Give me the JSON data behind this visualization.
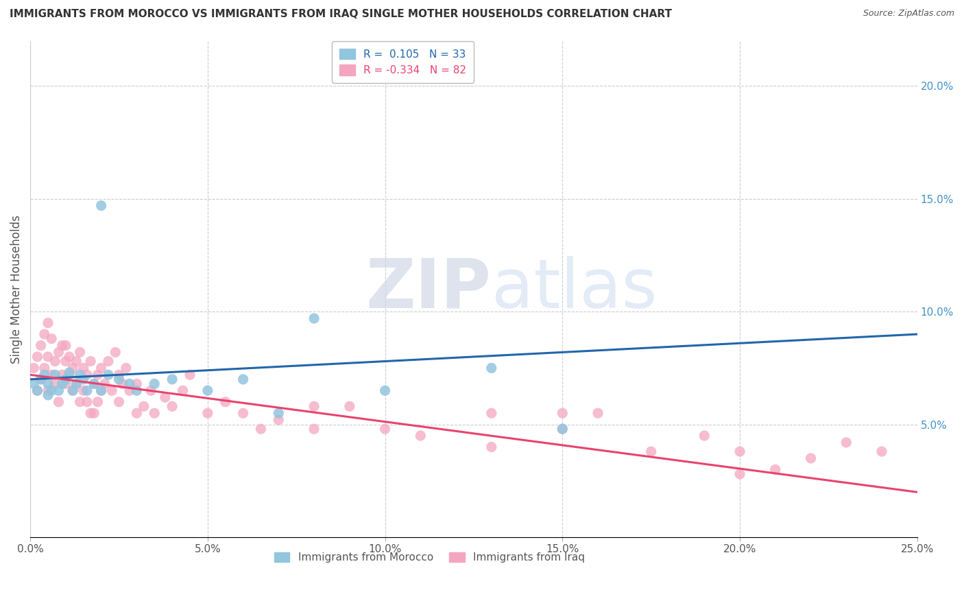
{
  "title": "IMMIGRANTS FROM MOROCCO VS IMMIGRANTS FROM IRAQ SINGLE MOTHER HOUSEHOLDS CORRELATION CHART",
  "source": "Source: ZipAtlas.com",
  "ylabel": "Single Mother Households",
  "watermark_zip": "ZIP",
  "watermark_atlas": "atlas",
  "legend_morocco": "Immigrants from Morocco",
  "legend_iraq": "Immigrants from Iraq",
  "R_morocco": 0.105,
  "N_morocco": 33,
  "R_iraq": -0.334,
  "N_iraq": 82,
  "color_morocco": "#92c5de",
  "color_iraq": "#f4a6c0",
  "line_color_morocco": "#2166ac",
  "line_color_iraq": "#e8436e",
  "xlim": [
    0.0,
    0.25
  ],
  "ylim": [
    0.0,
    0.22
  ],
  "xticks": [
    0.0,
    0.05,
    0.1,
    0.15,
    0.2,
    0.25
  ],
  "yticks_left": [],
  "yticks_right": [
    0.05,
    0.1,
    0.15,
    0.2
  ],
  "xticklabels": [
    "0.0%",
    "5.0%",
    "10.0%",
    "15.0%",
    "20.0%",
    "25.0%"
  ],
  "yticklabels_right": [
    "5.0%",
    "10.0%",
    "15.0%",
    "20.0%"
  ],
  "morocco_x": [
    0.001,
    0.002,
    0.003,
    0.004,
    0.005,
    0.005,
    0.006,
    0.007,
    0.008,
    0.009,
    0.01,
    0.011,
    0.012,
    0.013,
    0.014,
    0.015,
    0.016,
    0.018,
    0.02,
    0.022,
    0.025,
    0.028,
    0.03,
    0.035,
    0.04,
    0.05,
    0.06,
    0.07,
    0.08,
    0.1,
    0.02,
    0.13,
    0.15
  ],
  "morocco_y": [
    0.068,
    0.065,
    0.07,
    0.072,
    0.063,
    0.068,
    0.065,
    0.072,
    0.065,
    0.068,
    0.07,
    0.073,
    0.065,
    0.068,
    0.072,
    0.07,
    0.065,
    0.068,
    0.065,
    0.072,
    0.07,
    0.068,
    0.065,
    0.068,
    0.07,
    0.065,
    0.07,
    0.055,
    0.097,
    0.065,
    0.147,
    0.075,
    0.048
  ],
  "iraq_x": [
    0.001,
    0.002,
    0.002,
    0.003,
    0.003,
    0.004,
    0.004,
    0.005,
    0.005,
    0.005,
    0.006,
    0.006,
    0.007,
    0.007,
    0.008,
    0.008,
    0.009,
    0.009,
    0.01,
    0.01,
    0.01,
    0.011,
    0.011,
    0.012,
    0.012,
    0.013,
    0.013,
    0.014,
    0.014,
    0.015,
    0.015,
    0.016,
    0.016,
    0.017,
    0.017,
    0.018,
    0.018,
    0.019,
    0.019,
    0.02,
    0.02,
    0.021,
    0.022,
    0.023,
    0.024,
    0.025,
    0.025,
    0.026,
    0.027,
    0.028,
    0.03,
    0.03,
    0.032,
    0.034,
    0.035,
    0.038,
    0.04,
    0.043,
    0.045,
    0.05,
    0.055,
    0.06,
    0.065,
    0.07,
    0.08,
    0.09,
    0.1,
    0.11,
    0.13,
    0.15,
    0.16,
    0.175,
    0.19,
    0.2,
    0.21,
    0.22,
    0.23,
    0.24,
    0.08,
    0.13,
    0.15,
    0.2
  ],
  "iraq_y": [
    0.075,
    0.08,
    0.065,
    0.085,
    0.07,
    0.09,
    0.075,
    0.08,
    0.065,
    0.095,
    0.072,
    0.088,
    0.078,
    0.068,
    0.082,
    0.06,
    0.085,
    0.072,
    0.078,
    0.068,
    0.085,
    0.072,
    0.08,
    0.075,
    0.065,
    0.078,
    0.068,
    0.082,
    0.06,
    0.075,
    0.065,
    0.072,
    0.06,
    0.078,
    0.055,
    0.068,
    0.055,
    0.072,
    0.06,
    0.075,
    0.065,
    0.068,
    0.078,
    0.065,
    0.082,
    0.072,
    0.06,
    0.068,
    0.075,
    0.065,
    0.068,
    0.055,
    0.058,
    0.065,
    0.055,
    0.062,
    0.058,
    0.065,
    0.072,
    0.055,
    0.06,
    0.055,
    0.048,
    0.052,
    0.048,
    0.058,
    0.048,
    0.045,
    0.055,
    0.048,
    0.055,
    0.038,
    0.045,
    0.038,
    0.03,
    0.035,
    0.042,
    0.038,
    0.058,
    0.04,
    0.055,
    0.028
  ]
}
